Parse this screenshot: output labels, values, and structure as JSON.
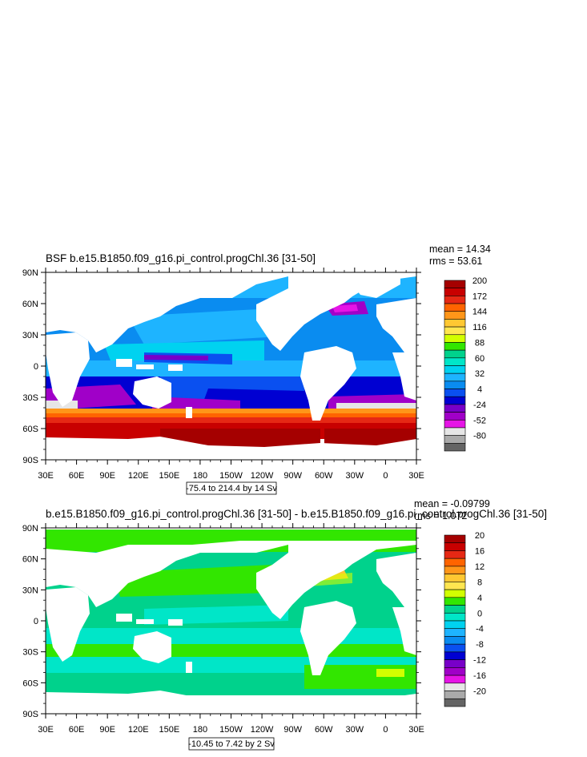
{
  "panels": [
    {
      "title": "BSF b.e15.B1850.f09_g16.pi_control.progChl.36 [31-50]",
      "mean_label": "mean = 14.34",
      "rms_label": "rms = 53.61",
      "info_label": "-75.4 to 214.4 by 14 Sv",
      "lat_labels": [
        "90N",
        "60N",
        "30N",
        "0",
        "30S",
        "60S",
        "90S"
      ],
      "lon_labels": [
        "30E",
        "60E",
        "90E",
        "120E",
        "150E",
        "180",
        "150W",
        "120W",
        "90W",
        "60W",
        "30W",
        "0",
        "30E"
      ],
      "colorbar": {
        "labels": [
          "200",
          "172",
          "144",
          "116",
          "88",
          "60",
          "32",
          "4",
          "-24",
          "-52",
          "-80"
        ],
        "colors": [
          "#a50000",
          "#c80000",
          "#e62814",
          "#ff6400",
          "#ff9619",
          "#ffc832",
          "#ffe650",
          "#d2ff00",
          "#32e600",
          "#00d28c",
          "#00e6c8",
          "#00d2f0",
          "#1eb4ff",
          "#0a8cf0",
          "#0a50f0",
          "#0000d2",
          "#7800c8",
          "#a000c8",
          "#e614e6",
          "#e6e6e6",
          "#aaaaaa",
          "#646464"
        ]
      }
    },
    {
      "title": "b.e15.B1850.f09_g16.pi_control.progChl.36 [31-50] - b.e15.B1850.f09_g16.pi_control.progChl.36 [31-50]",
      "mean_label": "mean = -0.09799",
      "rms_label": "rms = 1.072",
      "info_label": "-10.45 to 7.42 by 2 Sv",
      "lat_labels": [
        "90N",
        "60N",
        "30N",
        "0",
        "30S",
        "60S",
        "90S"
      ],
      "lon_labels": [
        "30E",
        "60E",
        "90E",
        "120E",
        "150E",
        "180",
        "150W",
        "120W",
        "90W",
        "60W",
        "30W",
        "0",
        "30E"
      ],
      "colorbar": {
        "labels": [
          "20",
          "16",
          "12",
          "8",
          "4",
          "0",
          "-4",
          "-8",
          "-12",
          "-16",
          "-20"
        ],
        "colors": [
          "#a50000",
          "#c80000",
          "#e62814",
          "#ff6400",
          "#ff9619",
          "#ffc832",
          "#ffe650",
          "#d2ff00",
          "#32e600",
          "#00d28c",
          "#00e6c8",
          "#00d2f0",
          "#1eb4ff",
          "#0a8cf0",
          "#0a50f0",
          "#0000d2",
          "#7800c8",
          "#a000c8",
          "#e614e6",
          "#e6e6e6",
          "#aaaaaa",
          "#646464"
        ]
      }
    }
  ]
}
